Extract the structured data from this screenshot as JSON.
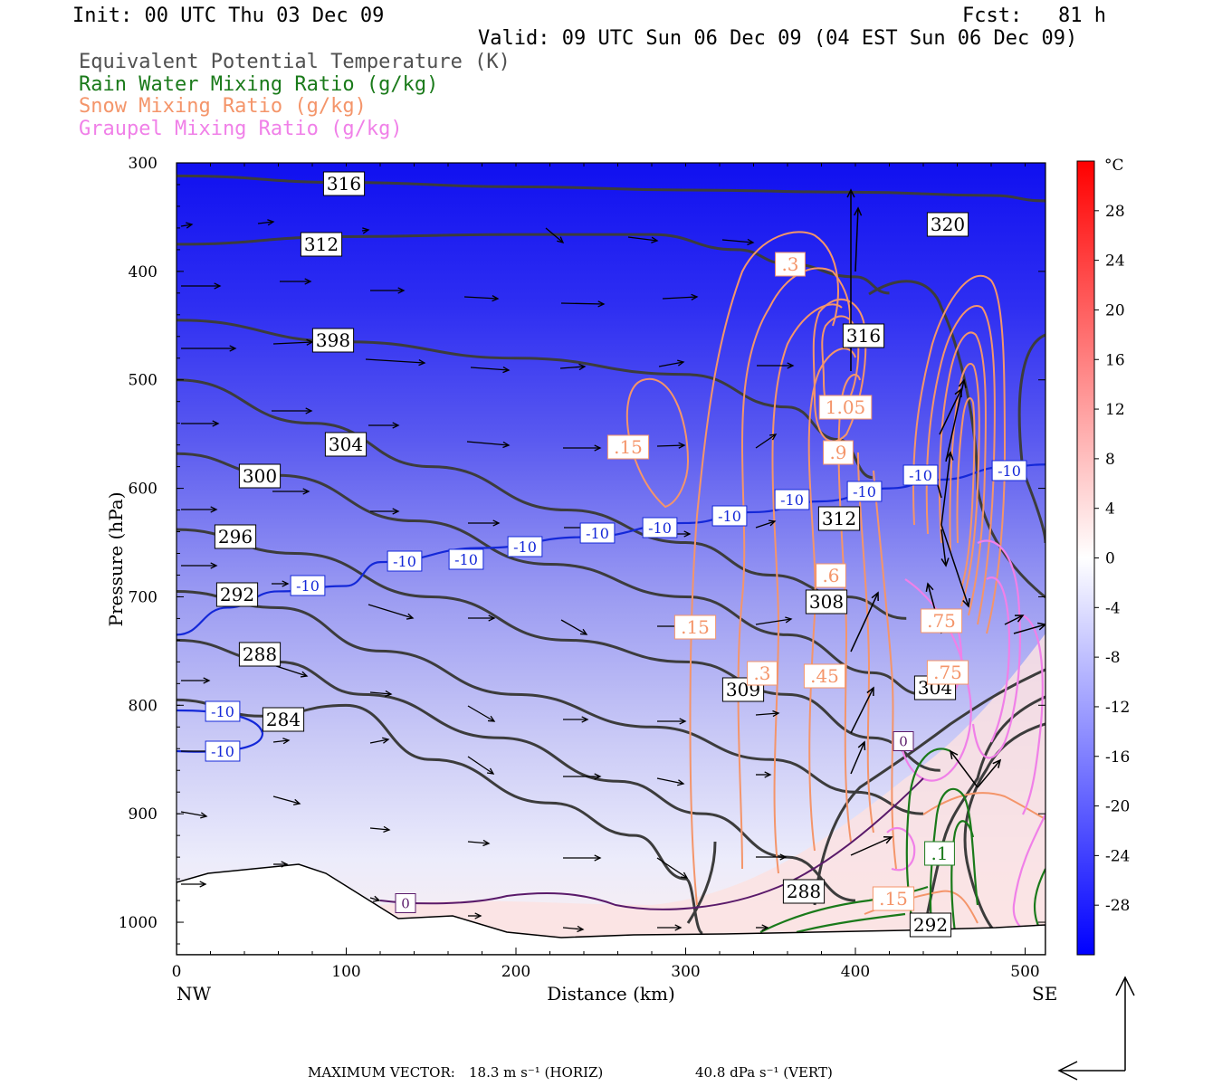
{
  "header": {
    "init": "Init: 00 UTC Thu 03 Dec 09",
    "fcst": "Fcst:   81 h",
    "valid": "Valid: 09 UTC Sun 06 Dec 09 (04 EST Sun 06 Dec 09)",
    "fields": [
      {
        "label": "Equivalent Potential Temperature (K)",
        "color": "#404040"
      },
      {
        "label": "Rain Water Mixing Ratio (g/kg)",
        "color": "#1a7a1a"
      },
      {
        "label": "Snow Mixing Ratio (g/kg)",
        "color": "#f4956a"
      },
      {
        "label": "Graupel Mixing Ratio (g/kg)",
        "color": "#f080e8"
      }
    ]
  },
  "footer": {
    "max_vector_label": "MAXIMUM VECTOR:",
    "horiz": "18.3 m s⁻¹ (HORIZ)",
    "vert": "40.8 dPa s⁻¹ (VERT)"
  },
  "chart_data": {
    "type": "cross-section",
    "xlabel": "Distance (km)",
    "ylabel": "Pressure (hPa)",
    "xlim": [
      0,
      512
    ],
    "ylim": [
      1030,
      300
    ],
    "x_ticks": [
      0,
      100,
      200,
      300,
      400,
      500
    ],
    "y_ticks": [
      300,
      400,
      500,
      600,
      700,
      800,
      900,
      1000
    ],
    "x_end_labels": {
      "left": "NW",
      "right": "SE"
    },
    "colorbar": {
      "unit": "°C",
      "ticks": [
        28,
        24,
        20,
        16,
        12,
        8,
        4,
        0,
        -4,
        -8,
        -12,
        -16,
        -20,
        -24,
        -28
      ],
      "range": [
        -32,
        32
      ]
    },
    "theta_e_lines": [
      {
        "label": "316",
        "points": [
          [
            0,
            312
          ],
          [
            100,
            318
          ],
          [
            200,
            322
          ],
          [
            300,
            325
          ],
          [
            400,
            327
          ],
          [
            480,
            330
          ],
          [
            512,
            335
          ]
        ]
      },
      {
        "label": "312",
        "points": [
          [
            0,
            375
          ],
          [
            100,
            368
          ],
          [
            200,
            366
          ],
          [
            280,
            366
          ],
          [
            330,
            380
          ],
          [
            360,
            393
          ],
          [
            400,
            405
          ],
          [
            420,
            420
          ]
        ]
      },
      {
        "label": "308",
        "points": [
          [
            0,
            445
          ],
          [
            100,
            465
          ],
          [
            200,
            480
          ],
          [
            300,
            495
          ],
          [
            360,
            525
          ],
          [
            390,
            555
          ],
          [
            410,
            590
          ]
        ]
      },
      {
        "label": "304",
        "points": [
          [
            0,
            500
          ],
          [
            80,
            540
          ],
          [
            150,
            580
          ],
          [
            230,
            620
          ],
          [
            300,
            650
          ],
          [
            350,
            680
          ],
          [
            395,
            700
          ],
          [
            430,
            720
          ]
        ]
      },
      {
        "label": "300",
        "points": [
          [
            0,
            568
          ],
          [
            60,
            588
          ],
          [
            140,
            630
          ],
          [
            220,
            670
          ],
          [
            300,
            700
          ],
          [
            360,
            735
          ],
          [
            410,
            770
          ],
          [
            440,
            790
          ]
        ]
      },
      {
        "label": "296",
        "points": [
          [
            0,
            638
          ],
          [
            70,
            660
          ],
          [
            150,
            700
          ],
          [
            230,
            740
          ],
          [
            300,
            760
          ],
          [
            360,
            790
          ],
          [
            410,
            830
          ],
          [
            450,
            860
          ]
        ]
      },
      {
        "label": "292",
        "points": [
          [
            0,
            695
          ],
          [
            60,
            710
          ],
          [
            120,
            750
          ],
          [
            200,
            790
          ],
          [
            280,
            820
          ],
          [
            350,
            850
          ],
          [
            400,
            880
          ],
          [
            440,
            900
          ]
        ]
      },
      {
        "label": "288",
        "points": [
          [
            0,
            740
          ],
          [
            60,
            760
          ],
          [
            110,
            790
          ],
          [
            190,
            830
          ],
          [
            260,
            870
          ],
          [
            310,
            900
          ],
          [
            360,
            940
          ],
          [
            400,
            980
          ]
        ]
      },
      {
        "label": "284",
        "points": [
          [
            0,
            795
          ],
          [
            50,
            810
          ],
          [
            100,
            800
          ],
          [
            150,
            850
          ],
          [
            220,
            890
          ],
          [
            270,
            920
          ],
          [
            300,
            960
          ],
          [
            310,
            1010
          ]
        ]
      }
    ],
    "isotherm_minus10": {
      "points": [
        [
          0,
          735
        ],
        [
          30,
          710
        ],
        [
          60,
          695
        ],
        [
          100,
          690
        ],
        [
          120,
          668
        ],
        [
          180,
          655
        ],
        [
          240,
          645
        ],
        [
          300,
          632
        ],
        [
          340,
          622
        ],
        [
          380,
          612
        ],
        [
          420,
          600
        ],
        [
          450,
          592
        ],
        [
          490,
          580
        ],
        [
          512,
          578
        ]
      ],
      "labels": [
        [
          -10,
          20,
          806
        ],
        [
          -10,
          20,
          845
        ],
        [
          -10,
          75,
          690
        ],
        [
          -10,
          135,
          668
        ],
        [
          -10,
          170,
          665
        ],
        [
          -10,
          210,
          654
        ],
        [
          -10,
          250,
          641
        ],
        [
          -10,
          290,
          635
        ],
        [
          -10,
          325,
          621
        ],
        [
          -10,
          363,
          609
        ],
        [
          -10,
          407,
          600
        ],
        [
          -10,
          440,
          592
        ],
        [
          -10,
          492,
          585
        ]
      ]
    },
    "snow_labels": [
      ".3",
      "1.05",
      ".9",
      ".15",
      ".15",
      ".6",
      ".45",
      ".3",
      ".75",
      ".75",
      ".15"
    ],
    "rain_labels": [
      ".1"
    ],
    "graupel_labels": [
      "0",
      "0"
    ],
    "theta_e_extra_labels": [
      "398",
      "316",
      "312",
      "308",
      "304",
      "300",
      "296",
      "292",
      "288",
      "284",
      "320",
      "316",
      "312",
      "308",
      "309",
      "304",
      "288",
      "292"
    ]
  }
}
